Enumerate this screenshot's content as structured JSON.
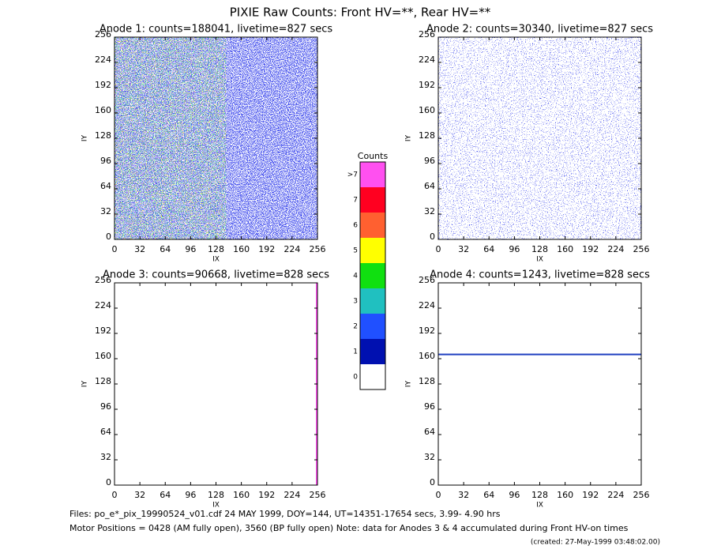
{
  "title": "PIXIE Raw Counts:  Front HV=**, Rear HV=**",
  "chart_data": [
    {
      "type": "heatmap",
      "title": "Anode 1: counts=188041, livetime=827 secs",
      "xlabel": "IX",
      "ylabel": "IY",
      "xlim": [
        0,
        256
      ],
      "ylim": [
        0,
        256
      ],
      "xticks": [
        0,
        32,
        64,
        96,
        128,
        160,
        192,
        224,
        256
      ],
      "yticks": [
        0,
        32,
        64,
        96,
        128,
        160,
        192,
        224,
        256
      ]
    },
    {
      "type": "heatmap",
      "title": "Anode 2: counts=30340, livetime=827 secs",
      "xlabel": "IX",
      "ylabel": "IY",
      "xlim": [
        0,
        256
      ],
      "ylim": [
        0,
        256
      ],
      "xticks": [
        0,
        32,
        64,
        96,
        128,
        160,
        192,
        224,
        256
      ],
      "yticks": [
        0,
        32,
        64,
        96,
        128,
        160,
        192,
        224,
        256
      ]
    },
    {
      "type": "heatmap",
      "title": "Anode 3: counts=90668, livetime=828 secs",
      "xlabel": "IX",
      "ylabel": "IY",
      "xlim": [
        0,
        256
      ],
      "ylim": [
        0,
        256
      ],
      "xticks": [
        0,
        32,
        64,
        96,
        128,
        160,
        192,
        224,
        256
      ],
      "yticks": [
        0,
        32,
        64,
        96,
        128,
        160,
        192,
        224,
        256
      ]
    },
    {
      "type": "heatmap",
      "title": "Anode 4: counts=1243, livetime=828 secs",
      "xlabel": "IX",
      "ylabel": "IY",
      "xlim": [
        0,
        256
      ],
      "ylim": [
        0,
        256
      ],
      "xticks": [
        0,
        32,
        64,
        96,
        128,
        160,
        192,
        224,
        256
      ],
      "yticks": [
        0,
        32,
        64,
        96,
        128,
        160,
        192,
        224,
        256
      ]
    }
  ],
  "colorbar": {
    "title": "Counts",
    "labels": [
      0,
      1,
      2,
      3,
      4,
      5,
      6,
      7,
      ">7"
    ],
    "colors": [
      "#ffffff",
      "#0010b0",
      "#2050ff",
      "#20c0c0",
      "#10e010",
      "#ffff00",
      "#ff6030",
      "#ff0020",
      "#ff50f0"
    ]
  },
  "footer": [
    "Files: po_e*_pix_19990524_v01.cdf    24 MAY 1999, DOY=144, UT=14351-17654 secs,  3.99- 4.90 hrs",
    "Motor Positions = 0428 (AM fully open), 3560 (BP fully open)    Note: data for Anodes 3 & 4 accumulated during Front HV-on times",
    "(created: 27-May-1999 03:48:02.00)"
  ]
}
